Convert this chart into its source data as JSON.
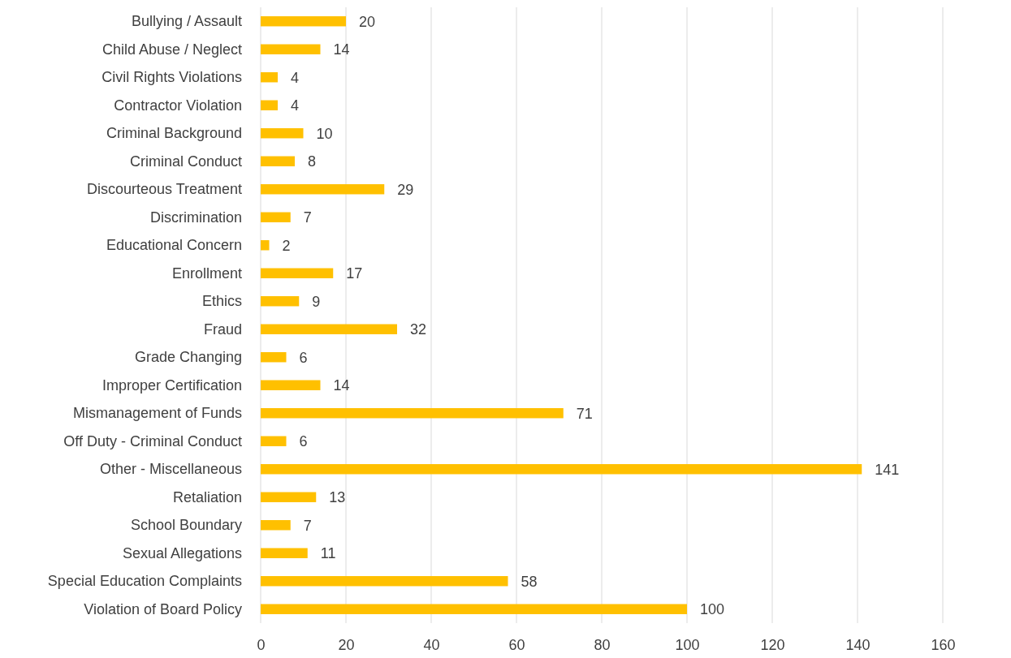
{
  "chart_data": {
    "type": "bar",
    "orientation": "horizontal",
    "categories": [
      "Bullying / Assault",
      "Child Abuse / Neglect",
      "Civil Rights Violations",
      "Contractor Violation",
      "Criminal Background",
      "Criminal Conduct",
      "Discourteous Treatment",
      "Discrimination",
      "Educational Concern",
      "Enrollment",
      "Ethics",
      "Fraud",
      "Grade Changing",
      "Improper Certification",
      "Mismanagement of Funds",
      "Off Duty - Criminal Conduct",
      "Other - Miscellaneous",
      "Retaliation",
      "School Boundary",
      "Sexual Allegations",
      "Special Education Complaints",
      "Violation of Board Policy"
    ],
    "values": [
      20,
      14,
      4,
      4,
      10,
      8,
      29,
      7,
      2,
      17,
      9,
      32,
      6,
      14,
      71,
      6,
      141,
      13,
      7,
      11,
      58,
      100
    ],
    "color": "#ffc000",
    "xlim": [
      0,
      160
    ],
    "xticks": [
      0,
      20,
      40,
      60,
      80,
      100,
      120,
      140,
      160
    ],
    "grid": "x",
    "data_labels": true
  }
}
